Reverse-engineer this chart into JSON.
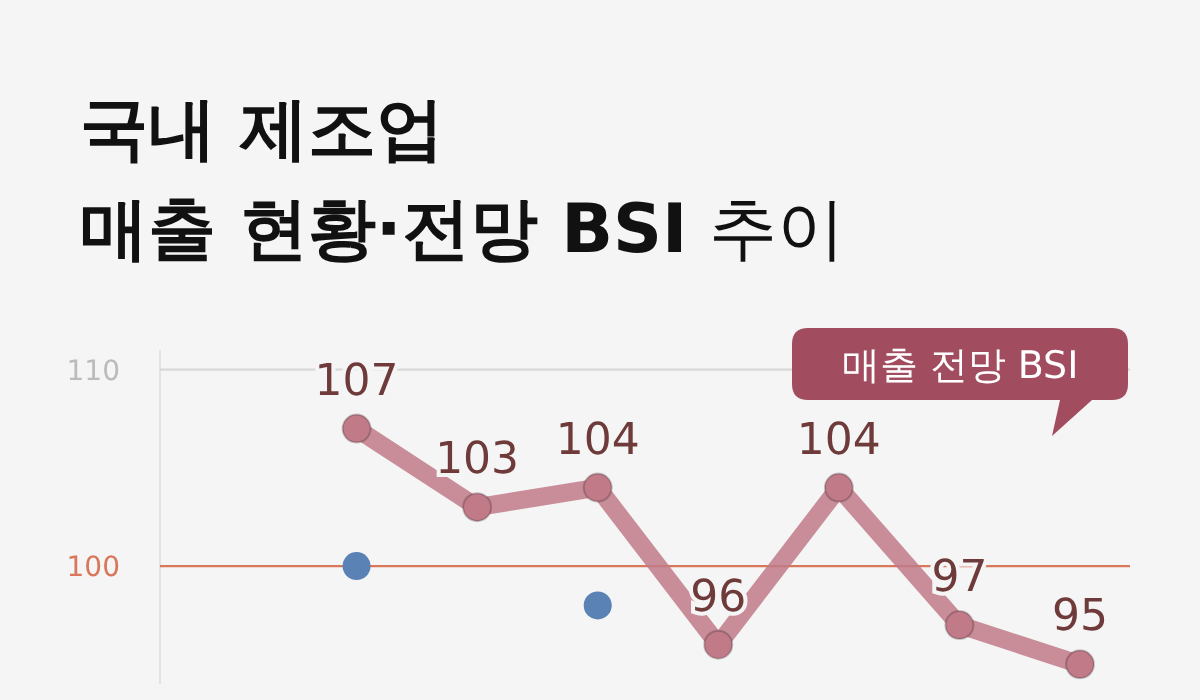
{
  "chart_data": {
    "type": "line",
    "title": "국내 제조업\n매출 현황·전망 **BSI** 추이",
    "categories": [
      null,
      null,
      null,
      null,
      null,
      null,
      null,
      null
    ],
    "series": [
      {
        "name": "매출 전망 BSI",
        "color": "#c07a88",
        "values": [
          null,
          107,
          103,
          104,
          96,
          104,
          97,
          95
        ],
        "value_labels": [
          null,
          "107",
          "103",
          "104",
          "96",
          "104",
          "97",
          "95"
        ]
      },
      {
        "type": "scatter",
        "color": "#5b82b5",
        "values": [
          null,
          100,
          null,
          98,
          null,
          null,
          null,
          null
        ]
      }
    ],
    "ylim": [
      94,
      111
    ],
    "yticks": [
      100,
      110
    ],
    "marker": "circle",
    "ref_lines": [
      {
        "axis": "y",
        "value": 110,
        "color": "#d8d8d8"
      },
      {
        "axis": "y",
        "value": 100,
        "color": "#d9775a"
      }
    ]
  }
}
